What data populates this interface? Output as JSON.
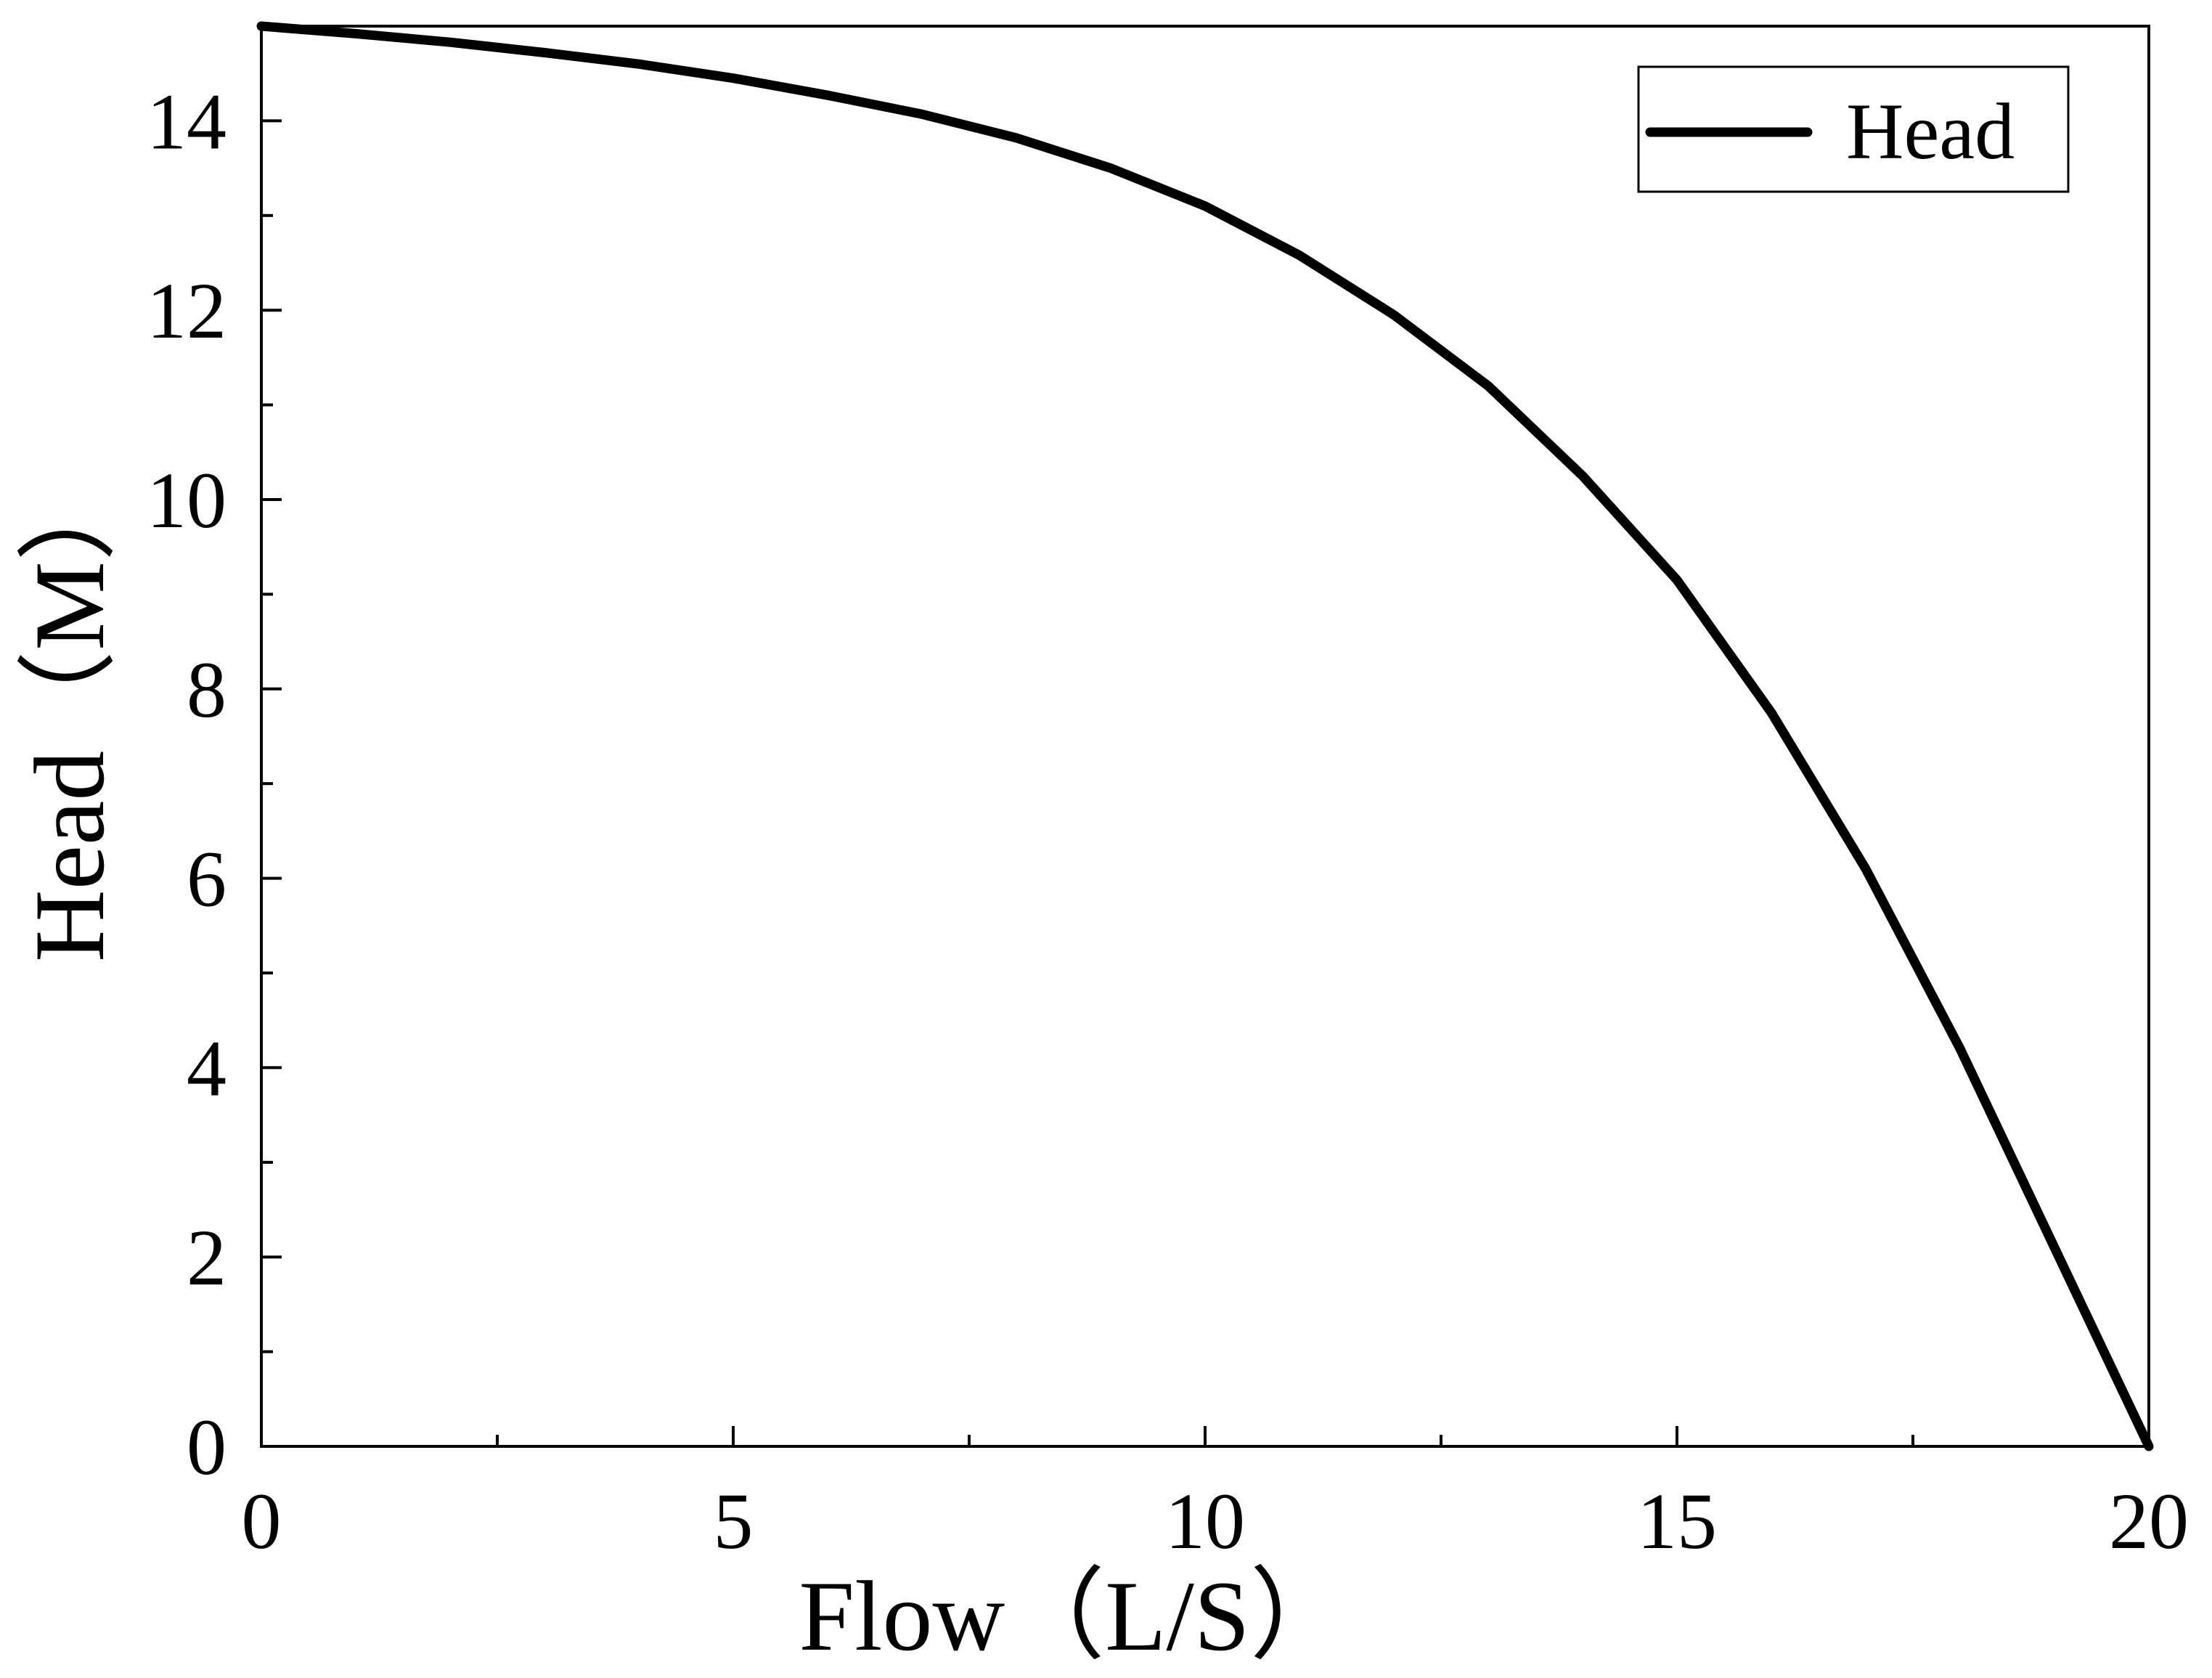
{
  "chart_data": {
    "type": "line",
    "title": "",
    "xlabel": "Flow（L/S）",
    "ylabel": "Head（M）",
    "xlim": [
      0,
      20
    ],
    "ylim": [
      0,
      15
    ],
    "x_major_ticks": [
      0,
      5,
      10,
      15,
      20
    ],
    "x_minor_ticks": [
      2.5,
      7.5,
      12.5,
      17.5
    ],
    "y_major_ticks": [
      0,
      2,
      4,
      6,
      8,
      10,
      12,
      14
    ],
    "y_minor_ticks": [
      1,
      3,
      5,
      7,
      9,
      11,
      13
    ],
    "x_tick_labels": [
      "0",
      "5",
      "10",
      "15",
      "20"
    ],
    "y_tick_labels": [
      "0",
      "2",
      "4",
      "6",
      "8",
      "10",
      "12",
      "14"
    ],
    "grid": false,
    "legend": {
      "position": "top-right",
      "entries": [
        "Head"
      ]
    },
    "series": [
      {
        "name": "Head",
        "color": "#000000",
        "x": [
          0,
          1,
          2,
          3,
          4,
          5,
          6,
          7,
          8,
          9,
          10,
          11,
          12,
          13,
          14,
          15,
          16,
          17,
          18,
          19,
          20
        ],
        "y": [
          15.0,
          14.92,
          14.83,
          14.72,
          14.6,
          14.45,
          14.27,
          14.07,
          13.82,
          13.5,
          13.1,
          12.58,
          11.95,
          11.2,
          10.25,
          9.15,
          7.75,
          6.1,
          4.2,
          2.1,
          0.0
        ]
      }
    ]
  }
}
